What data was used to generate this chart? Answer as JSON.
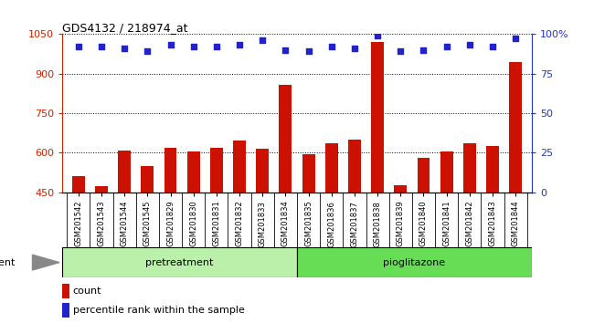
{
  "title": "GDS4132 / 218974_at",
  "categories": [
    "GSM201542",
    "GSM201543",
    "GSM201544",
    "GSM201545",
    "GSM201829",
    "GSM201830",
    "GSM201831",
    "GSM201832",
    "GSM201833",
    "GSM201834",
    "GSM201835",
    "GSM201836",
    "GSM201837",
    "GSM201838",
    "GSM201839",
    "GSM201840",
    "GSM201841",
    "GSM201842",
    "GSM201843",
    "GSM201844"
  ],
  "counts": [
    510,
    472,
    608,
    548,
    618,
    605,
    618,
    645,
    615,
    858,
    595,
    635,
    650,
    1020,
    475,
    580,
    603,
    635,
    625,
    945
  ],
  "percentile_ranks": [
    92,
    92,
    91,
    89,
    93,
    92,
    92,
    93,
    96,
    90,
    89,
    92,
    91,
    99,
    89,
    90,
    92,
    93,
    92,
    97
  ],
  "ylim_left": [
    450,
    1050
  ],
  "ylim_right": [
    0,
    100
  ],
  "yticks_left": [
    450,
    600,
    750,
    900,
    1050
  ],
  "yticks_right": [
    0,
    25,
    50,
    75,
    100
  ],
  "ytick_right_labels": [
    "0",
    "25",
    "50",
    "75",
    "100%"
  ],
  "bar_color": "#cc1100",
  "dot_color": "#2222cc",
  "group1_label": "pretreatment",
  "group2_label": "pioglitazone",
  "group1_count": 10,
  "group1_color": "#bbf0aa",
  "group2_color": "#66dd55",
  "agent_label": "agent",
  "legend_bar_label": "count",
  "legend_dot_label": "percentile rank within the sample",
  "left_tick_color": "#cc2200",
  "right_tick_color": "#2233cc",
  "xtick_bg_color": "#cccccc",
  "plot_bg": "#ffffff",
  "fig_bg": "#ffffff"
}
